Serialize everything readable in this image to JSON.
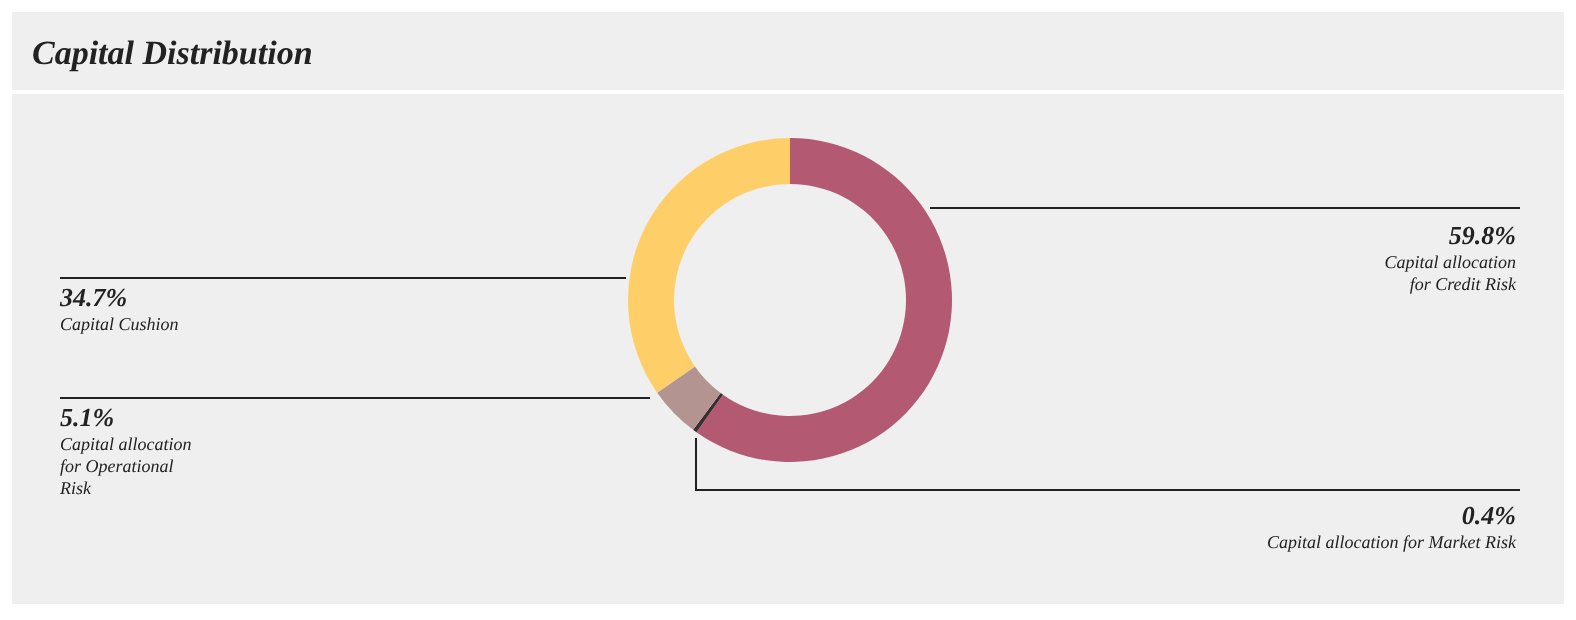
{
  "chart_data": {
    "type": "donut",
    "title": "Capital Distribution",
    "categories": [
      "Capital allocation for Credit Risk",
      "Capital allocation for Market Risk",
      "Capital allocation for Operational Risk",
      "Capital Cushion"
    ],
    "values": [
      59.8,
      0.4,
      5.1,
      34.7
    ],
    "value_labels": [
      "59.8%",
      "0.4%",
      "5.1%",
      "34.7%"
    ],
    "colors": [
      "#b35a72",
      "#3a2e2e",
      "#b39490",
      "#fecf68"
    ]
  }
}
